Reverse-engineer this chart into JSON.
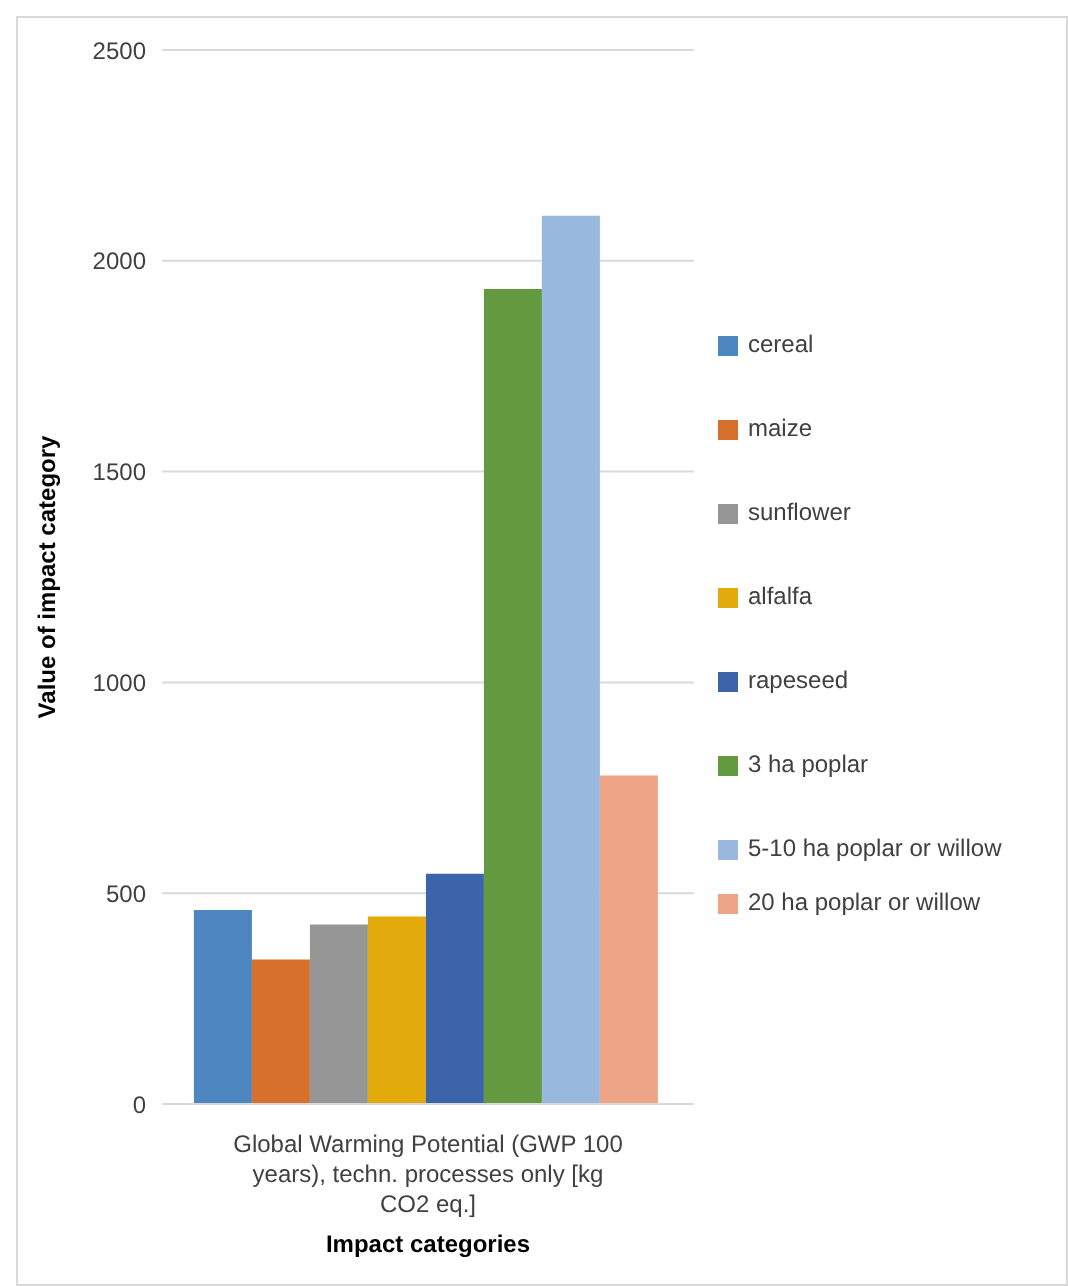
{
  "chart_data": {
    "type": "bar",
    "categories": [
      "Global Warming Potential (GWP 100 years), techn. processes only [kg CO2 eq.]"
    ],
    "xlabel": "Impact categories",
    "ylabel": "Value of impact category",
    "ylim": [
      0,
      2500
    ],
    "yticks": [
      0,
      500,
      1000,
      1500,
      2000,
      2500
    ],
    "grid": "y",
    "legend": "right",
    "series": [
      {
        "name": "cereal",
        "color": "#4e86c1",
        "values": [
          460
        ]
      },
      {
        "name": "maize",
        "color": "#d7702c",
        "values": [
          343
        ]
      },
      {
        "name": "sunflower",
        "color": "#969696",
        "values": [
          426
        ]
      },
      {
        "name": "alfalfa",
        "color": "#e3aa0c",
        "values": [
          445
        ]
      },
      {
        "name": "rapeseed",
        "color": "#3c64ab",
        "values": [
          546
        ]
      },
      {
        "name": "3 ha poplar",
        "color": "#639a3f",
        "values": [
          1933
        ]
      },
      {
        "name": "5-10 ha poplar or willow",
        "color": "#98b8de",
        "values": [
          2107
        ]
      },
      {
        "name": "20 ha poplar or willow",
        "color": "#eea587",
        "values": [
          779
        ]
      }
    ]
  }
}
